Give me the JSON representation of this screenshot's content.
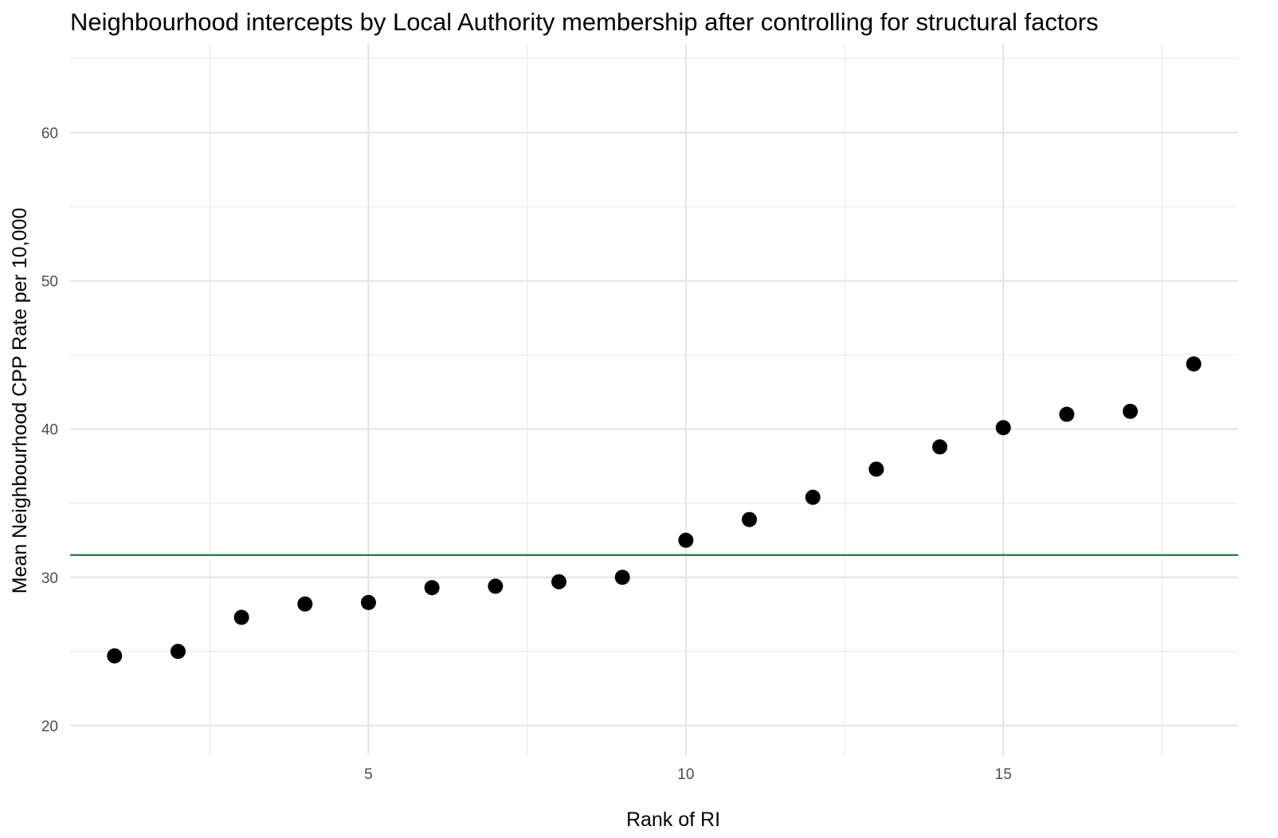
{
  "chart_data": {
    "type": "scatter",
    "title": "Neighbourhood intercepts by Local Authority membership after controlling for structural factors",
    "xlabel": "Rank of RI",
    "ylabel": "Mean Neighbourhood CPP Rate per 10,000",
    "xlim": [
      0.3,
      18.7
    ],
    "ylim": [
      18,
      66
    ],
    "x_ticks": [
      5,
      10,
      15
    ],
    "x_tick_labels": [
      "5",
      "10",
      "15"
    ],
    "x_minor_ticks": [
      2.5,
      7.5,
      12.5,
      17.5
    ],
    "y_ticks": [
      20,
      30,
      40,
      50,
      60
    ],
    "y_tick_labels": [
      "20",
      "30",
      "40",
      "50",
      "60"
    ],
    "y_minor_ticks": [
      25,
      35,
      45,
      55,
      65
    ],
    "grid": true,
    "legend": "none",
    "reference_line": {
      "orientation": "horizontal",
      "y": 31.5,
      "color": "#2e7d4f"
    },
    "point_color": "#000000",
    "series": [
      {
        "x": [
          1,
          2,
          3,
          4,
          5,
          6,
          7,
          8,
          9,
          10,
          11,
          12,
          13,
          14,
          15,
          16,
          17,
          18
        ],
        "y": [
          24.7,
          25.0,
          27.3,
          28.2,
          28.3,
          29.3,
          29.4,
          29.7,
          30.0,
          32.5,
          33.9,
          35.4,
          37.3,
          38.8,
          40.1,
          41.0,
          41.2,
          44.4
        ]
      }
    ]
  }
}
